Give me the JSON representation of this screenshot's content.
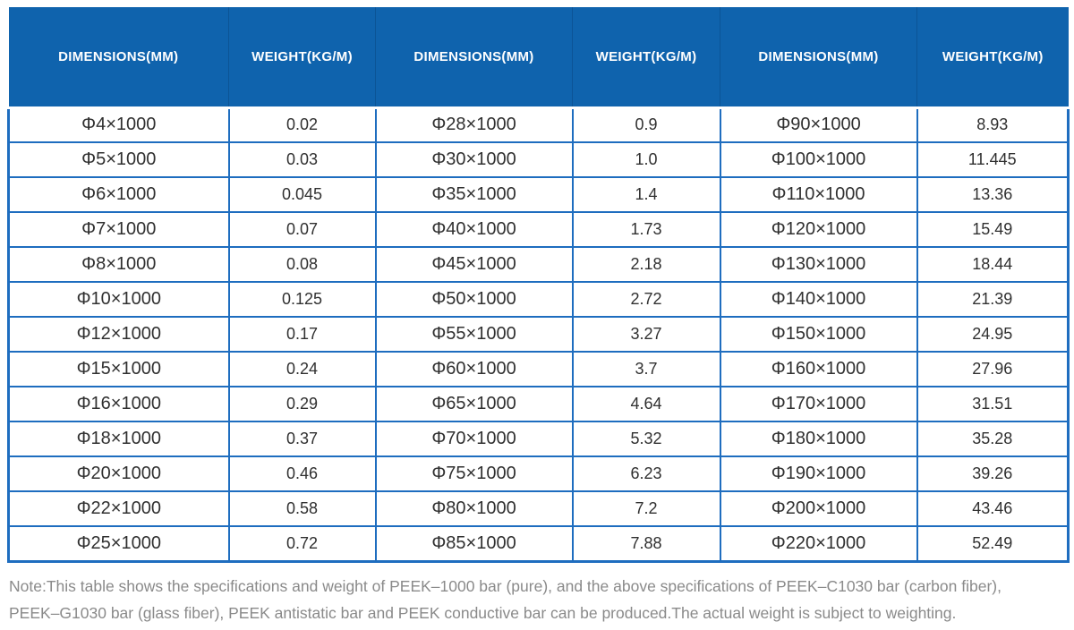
{
  "table": {
    "headers": [
      "DIMENSIONS(MM)",
      "WEIGHT(KG/M)",
      "DIMENSIONS(MM)",
      "WEIGHT(KG/M)",
      "DIMENSIONS(MM)",
      "WEIGHT(KG/M)"
    ],
    "rows": [
      [
        "Φ4×1000",
        "0.02",
        "Φ28×1000",
        "0.9",
        "Φ90×1000",
        "8.93"
      ],
      [
        "Φ5×1000",
        "0.03",
        "Φ30×1000",
        "1.0",
        "Φ100×1000",
        "11.445"
      ],
      [
        "Φ6×1000",
        "0.045",
        "Φ35×1000",
        "1.4",
        "Φ110×1000",
        "13.36"
      ],
      [
        "Φ7×1000",
        "0.07",
        "Φ40×1000",
        "1.73",
        "Φ120×1000",
        "15.49"
      ],
      [
        "Φ8×1000",
        "0.08",
        "Φ45×1000",
        "2.18",
        "Φ130×1000",
        "18.44"
      ],
      [
        "Φ10×1000",
        "0.125",
        "Φ50×1000",
        "2.72",
        "Φ140×1000",
        "21.39"
      ],
      [
        "Φ12×1000",
        "0.17",
        "Φ55×1000",
        "3.27",
        "Φ150×1000",
        "24.95"
      ],
      [
        "Φ15×1000",
        "0.24",
        "Φ60×1000",
        "3.7",
        "Φ160×1000",
        "27.96"
      ],
      [
        "Φ16×1000",
        "0.29",
        "Φ65×1000",
        "4.64",
        "Φ170×1000",
        "31.51"
      ],
      [
        "Φ18×1000",
        "0.37",
        "Φ70×1000",
        "5.32",
        "Φ180×1000",
        "35.28"
      ],
      [
        "Φ20×1000",
        "0.46",
        "Φ75×1000",
        "6.23",
        "Φ190×1000",
        "39.26"
      ],
      [
        "Φ22×1000",
        "0.58",
        "Φ80×1000",
        "7.2",
        "Φ200×1000",
        "43.46"
      ],
      [
        "Φ25×1000",
        "0.72",
        "Φ85×1000",
        "7.88",
        "Φ220×1000",
        "52.49"
      ]
    ],
    "note": {
      "line1": "Note:This table shows the specifications and weight of PEEK–1000 bar (pure), and the above specifications of PEEK–C1030 bar (carbon fiber),",
      "line2": "PEEK–G1030 bar (glass fiber), PEEK antistatic bar and PEEK conductive bar can be produced.The actual weight is subject to weighting."
    },
    "colors": {
      "header_bg": "#0f63ad",
      "border": "#1e6dbf",
      "cell_text": "#303030",
      "note_text": "#8a8a8a"
    }
  }
}
